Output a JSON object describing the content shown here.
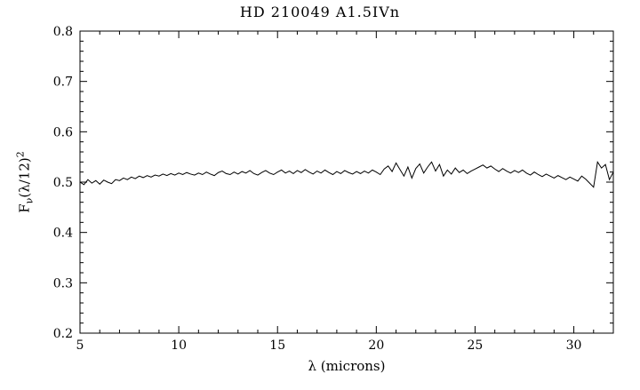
{
  "chart_data": {
    "type": "line",
    "title": "HD 210049 A1.5IVn",
    "xlabel": "λ (microns)",
    "ylabel": "Fν(λ/12)²",
    "ylabel_parts": {
      "prefix": "F",
      "sub": "ν",
      "mid": "(λ/12)",
      "sup": "2"
    },
    "xlim": [
      5,
      32
    ],
    "ylim": [
      0.2,
      0.8
    ],
    "x_ticks": [
      5,
      10,
      15,
      20,
      25,
      30
    ],
    "y_ticks": [
      0.2,
      0.3,
      0.4,
      0.5,
      0.6,
      0.7,
      0.8
    ],
    "x_minor_step": 1,
    "y_minor_step": 0.02,
    "grid": false,
    "legend": null,
    "line_color": "#000000",
    "frame_color": "#000000",
    "background": "#ffffff",
    "series": [
      {
        "name": "spectrum",
        "x": [
          5.0,
          5.2,
          5.4,
          5.6,
          5.8,
          6.0,
          6.2,
          6.4,
          6.6,
          6.8,
          7.0,
          7.2,
          7.4,
          7.6,
          7.8,
          8.0,
          8.2,
          8.4,
          8.6,
          8.8,
          9.0,
          9.2,
          9.4,
          9.6,
          9.8,
          10.0,
          10.2,
          10.4,
          10.6,
          10.8,
          11.0,
          11.2,
          11.4,
          11.6,
          11.8,
          12.0,
          12.2,
          12.4,
          12.6,
          12.8,
          13.0,
          13.2,
          13.4,
          13.6,
          13.8,
          14.0,
          14.2,
          14.4,
          14.6,
          14.8,
          15.0,
          15.2,
          15.4,
          15.6,
          15.8,
          16.0,
          16.2,
          16.4,
          16.6,
          16.8,
          17.0,
          17.2,
          17.4,
          17.6,
          17.8,
          18.0,
          18.2,
          18.4,
          18.6,
          18.8,
          19.0,
          19.2,
          19.4,
          19.6,
          19.8,
          20.0,
          20.2,
          20.4,
          20.6,
          20.8,
          21.0,
          21.2,
          21.4,
          21.6,
          21.8,
          22.0,
          22.2,
          22.4,
          22.6,
          22.8,
          23.0,
          23.2,
          23.4,
          23.6,
          23.8,
          24.0,
          24.2,
          24.4,
          24.6,
          24.8,
          25.0,
          25.2,
          25.4,
          25.6,
          25.8,
          26.0,
          26.2,
          26.4,
          26.6,
          26.8,
          27.0,
          27.2,
          27.4,
          27.6,
          27.8,
          28.0,
          28.2,
          28.4,
          28.6,
          28.8,
          29.0,
          29.2,
          29.4,
          29.6,
          29.8,
          30.0,
          30.2,
          30.4,
          30.6,
          30.8,
          31.0,
          31.2,
          31.4,
          31.6,
          31.8,
          32.0
        ],
        "y": [
          0.5,
          0.495,
          0.505,
          0.498,
          0.503,
          0.496,
          0.504,
          0.5,
          0.497,
          0.505,
          0.503,
          0.508,
          0.505,
          0.51,
          0.507,
          0.512,
          0.509,
          0.513,
          0.51,
          0.514,
          0.512,
          0.516,
          0.513,
          0.517,
          0.514,
          0.518,
          0.515,
          0.519,
          0.516,
          0.514,
          0.518,
          0.515,
          0.52,
          0.516,
          0.513,
          0.519,
          0.522,
          0.517,
          0.515,
          0.52,
          0.516,
          0.521,
          0.518,
          0.523,
          0.517,
          0.514,
          0.519,
          0.523,
          0.518,
          0.515,
          0.52,
          0.524,
          0.518,
          0.522,
          0.517,
          0.523,
          0.519,
          0.525,
          0.52,
          0.516,
          0.522,
          0.518,
          0.524,
          0.519,
          0.515,
          0.521,
          0.517,
          0.523,
          0.519,
          0.516,
          0.521,
          0.517,
          0.522,
          0.518,
          0.524,
          0.52,
          0.515,
          0.526,
          0.532,
          0.521,
          0.538,
          0.525,
          0.512,
          0.53,
          0.508,
          0.527,
          0.536,
          0.518,
          0.53,
          0.54,
          0.522,
          0.535,
          0.512,
          0.524,
          0.516,
          0.528,
          0.519,
          0.524,
          0.517,
          0.522,
          0.526,
          0.53,
          0.534,
          0.528,
          0.532,
          0.526,
          0.521,
          0.527,
          0.522,
          0.518,
          0.523,
          0.519,
          0.524,
          0.518,
          0.514,
          0.52,
          0.515,
          0.511,
          0.516,
          0.512,
          0.508,
          0.513,
          0.509,
          0.505,
          0.51,
          0.506,
          0.502,
          0.512,
          0.506,
          0.498,
          0.49,
          0.54,
          0.528,
          0.535,
          0.505,
          0.52
        ]
      }
    ]
  }
}
